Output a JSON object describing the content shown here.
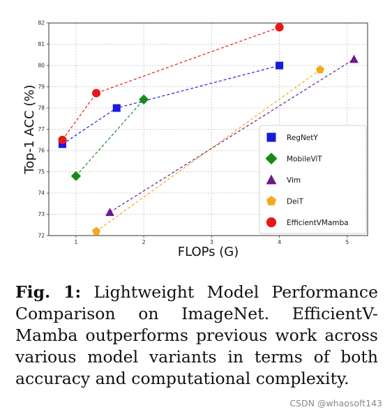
{
  "chart_data": {
    "type": "line",
    "xlabel": "FLOPs (G)",
    "ylabel": "Top-1 ACC (%)",
    "xlim": [
      0.6,
      5.3
    ],
    "ylim": [
      72,
      82
    ],
    "xticks": [
      1,
      2,
      3,
      4,
      5
    ],
    "yticks": [
      72,
      73,
      74,
      75,
      76,
      77,
      78,
      79,
      80,
      81,
      82
    ],
    "grid": true,
    "legend_position": "lower-right",
    "series": [
      {
        "name": "RegNetY",
        "color": "#1a1adf",
        "marker": "square",
        "points": [
          [
            0.8,
            76.3
          ],
          [
            1.6,
            78.0
          ],
          [
            4.0,
            80.0
          ]
        ]
      },
      {
        "name": "MobileViT",
        "color": "#188a18",
        "marker": "diamond",
        "points": [
          [
            1.0,
            74.8
          ],
          [
            2.0,
            78.4
          ]
        ]
      },
      {
        "name": "Vim",
        "color": "#6a1a8a",
        "marker": "triangle",
        "points": [
          [
            1.5,
            73.1
          ],
          [
            5.1,
            80.3
          ]
        ]
      },
      {
        "name": "DeiT",
        "color": "#f4a81c",
        "marker": "pentagon",
        "points": [
          [
            1.3,
            72.2
          ],
          [
            4.6,
            79.8
          ]
        ]
      },
      {
        "name": "EfficientVMamba",
        "color": "#e81818",
        "marker": "circle",
        "points": [
          [
            0.8,
            76.5
          ],
          [
            1.3,
            78.7
          ],
          [
            4.0,
            81.8
          ]
        ]
      }
    ]
  },
  "caption": {
    "label": "Fig. 1:",
    "text": "Lightweight Model Performance Comparison on ImageNet. EfficientV-Mamba outperforms previous work across various model variants in terms of both accuracy and computational complexity."
  },
  "watermark": "CSDN @whaosoft143"
}
